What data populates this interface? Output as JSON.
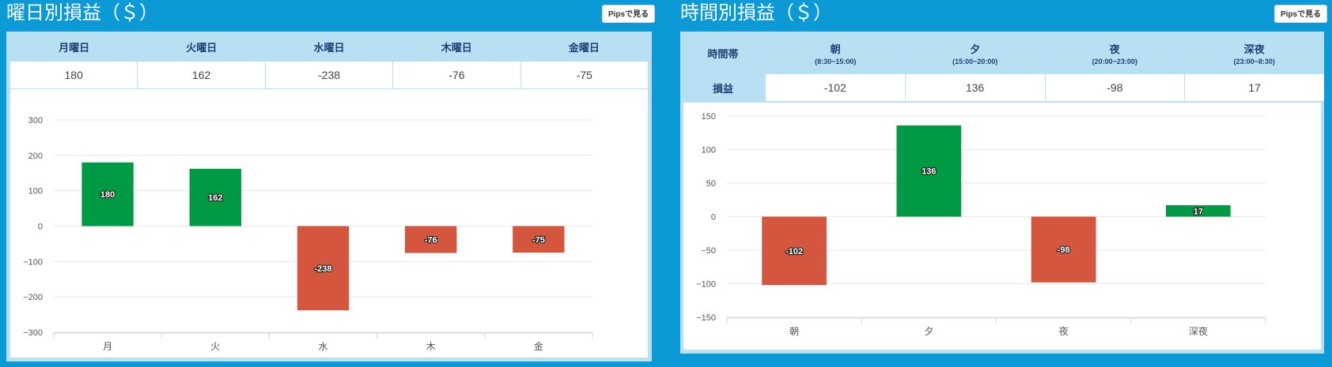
{
  "weekday_panel": {
    "title": "曜日別損益（＄）",
    "pips_label": "Pipsで見る",
    "headers": [
      "月曜日",
      "火曜日",
      "水曜日",
      "木曜日",
      "金曜日"
    ],
    "values": [
      "180",
      "162",
      "-238",
      "-76",
      "-75"
    ]
  },
  "time_panel": {
    "title": "時間別損益（＄）",
    "pips_label": "Pipsで見る",
    "row_header": "時間帯",
    "row_value_label": "損益",
    "headers": [
      {
        "label": "朝",
        "range": "(8:30~15:00)"
      },
      {
        "label": "夕",
        "range": "(15:00~20:00)"
      },
      {
        "label": "夜",
        "range": "(20:00~23:00)"
      },
      {
        "label": "深夜",
        "range": "(23:00~8:30)"
      }
    ],
    "values": [
      "-102",
      "136",
      "-98",
      "17"
    ]
  },
  "colors": {
    "positive": "#009944",
    "negative": "#d4563f",
    "background": "#0c9ad6",
    "header": "#b7e0f2"
  },
  "chart_data": [
    {
      "type": "bar",
      "categories": [
        "月",
        "火",
        "水",
        "木",
        "金"
      ],
      "values": [
        180,
        162,
        -238,
        -76,
        -75
      ],
      "ylim": [
        -300,
        300
      ],
      "yticks": [
        300,
        200,
        100,
        0,
        -100,
        -200,
        -300
      ],
      "grid": true
    },
    {
      "type": "bar",
      "categories": [
        "朝",
        "夕",
        "夜",
        "深夜"
      ],
      "values": [
        -102,
        136,
        -98,
        17
      ],
      "ylim": [
        -150,
        150
      ],
      "yticks": [
        150,
        100,
        50,
        0,
        -50,
        -100,
        -150
      ],
      "grid": true
    }
  ]
}
